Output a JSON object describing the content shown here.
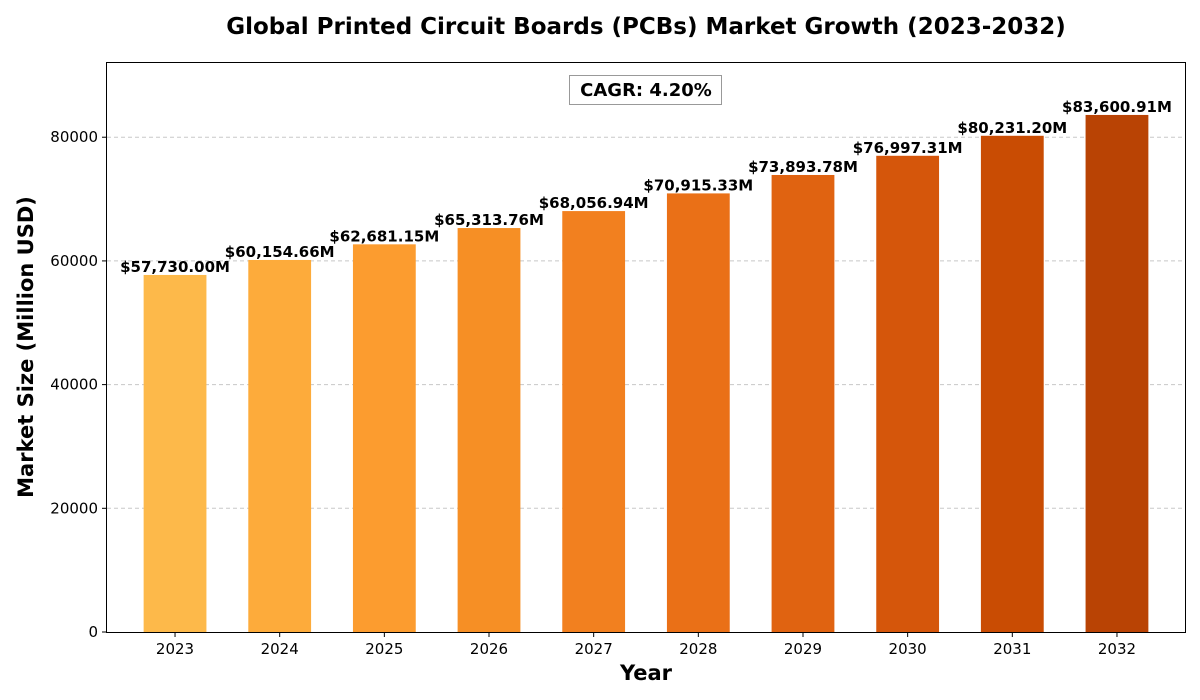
{
  "chart_data": {
    "type": "bar",
    "title": "Global Printed Circuit Boards (PCBs) Market Growth (2023-2032)",
    "xlabel": "Year",
    "ylabel": "Market Size (Million USD)",
    "categories": [
      "2023",
      "2024",
      "2025",
      "2026",
      "2027",
      "2028",
      "2029",
      "2030",
      "2031",
      "2032"
    ],
    "values": [
      57730.0,
      60154.66,
      62681.15,
      65313.76,
      68056.94,
      70915.33,
      73893.78,
      76997.31,
      80231.2,
      83600.91
    ],
    "data_labels": [
      "$57,730.00M",
      "$60,154.66M",
      "$62,681.15M",
      "$65,313.76M",
      "$68,056.94M",
      "$70,915.33M",
      "$73,893.78M",
      "$76,997.31M",
      "$80,231.20M",
      "$83,600.91M"
    ],
    "bar_colors": [
      "#fdb94a",
      "#fdab3b",
      "#fc9c2f",
      "#f68f25",
      "#f2801f",
      "#ea7017",
      "#e06311",
      "#d5560b",
      "#c94c03",
      "#b94304"
    ],
    "ylim": [
      0,
      92000
    ],
    "yticks": [
      0,
      20000,
      40000,
      60000,
      80000
    ],
    "ytick_labels": [
      "0",
      "20000",
      "40000",
      "60000",
      "80000"
    ],
    "grid": true,
    "annotation": "CAGR: 4.20%"
  }
}
